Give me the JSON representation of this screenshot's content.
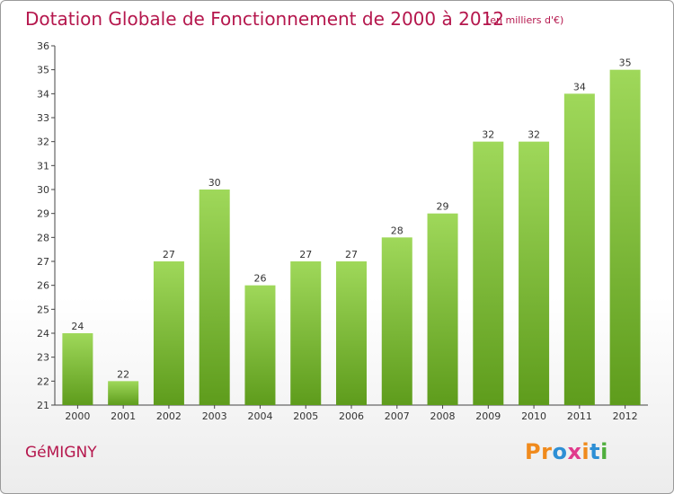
{
  "header": {
    "title": "Dotation Globale de Fonctionnement de 2000 à 2012",
    "unit_note": "(en milliers d'€)"
  },
  "footer": {
    "commune": "GéMIGNY",
    "logo_letters": [
      "P",
      "r",
      "o",
      "x",
      "i",
      "t",
      "i"
    ],
    "logo_colors": [
      "#f08a1c",
      "#f08a1c",
      "#2d8fd5",
      "#e03a8c",
      "#f08a1c",
      "#2d8fd5",
      "#4fae3c"
    ]
  },
  "colors": {
    "bar_light": "#9fd85a",
    "bar_dark": "#5e9c1c",
    "title": "#b5174d"
  },
  "chart_data": {
    "type": "bar",
    "title": "Dotation Globale de Fonctionnement de 2000 à 2012",
    "subtitle": "(en milliers d'€)",
    "categories": [
      "2000",
      "2001",
      "2002",
      "2003",
      "2004",
      "2005",
      "2006",
      "2007",
      "2008",
      "2009",
      "2010",
      "2011",
      "2012"
    ],
    "values": [
      24,
      22,
      27,
      30,
      26,
      27,
      27,
      28,
      29,
      32,
      32,
      34,
      35
    ],
    "xlabel": "",
    "ylabel": "",
    "ylim": [
      21,
      36
    ],
    "yticks": [
      21,
      22,
      23,
      24,
      25,
      26,
      27,
      28,
      29,
      30,
      31,
      32,
      33,
      34,
      35,
      36
    ],
    "grid": false,
    "data_labels": true
  }
}
